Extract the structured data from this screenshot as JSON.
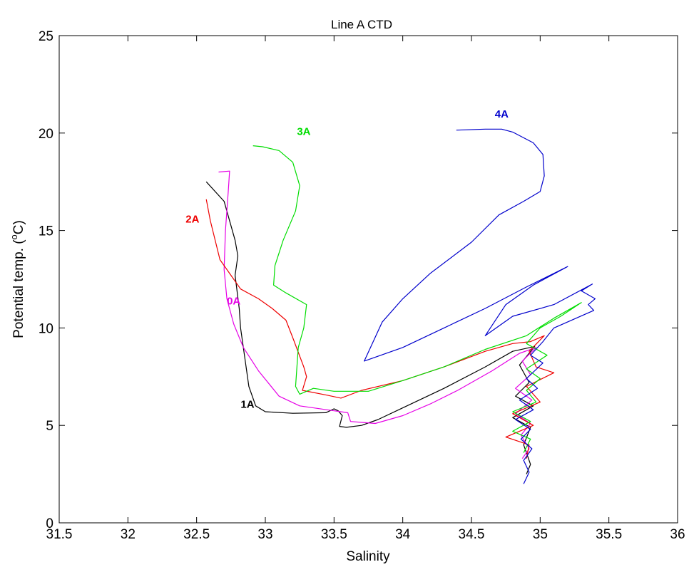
{
  "chart_data": {
    "type": "line",
    "title": "Line A CTD",
    "xlabel": "Salinity",
    "ylabel_prefix": "Potential temp. (",
    "ylabel_sup": "o",
    "ylabel_suffix": "C)",
    "xlim": [
      31.5,
      36
    ],
    "ylim": [
      0,
      25
    ],
    "xticks": [
      "31.5",
      "32",
      "32.5",
      "33",
      "33.5",
      "34",
      "34.5",
      "35",
      "35.5",
      "36"
    ],
    "yticks": [
      "0",
      "5",
      "10",
      "15",
      "20",
      "25"
    ],
    "grid": false,
    "legend": "none",
    "series": [
      {
        "name": "1A",
        "color": "#000000",
        "label_at": [
          32.87,
          5.9
        ],
        "points": [
          [
            32.57,
            17.5
          ],
          [
            32.7,
            16.5
          ],
          [
            32.78,
            14.5
          ],
          [
            32.8,
            13.7
          ],
          [
            32.78,
            12.7
          ],
          [
            32.81,
            11.0
          ],
          [
            32.82,
            10.0
          ],
          [
            32.85,
            8.5
          ],
          [
            32.88,
            7.0
          ],
          [
            32.93,
            6.0
          ],
          [
            33.0,
            5.7
          ],
          [
            33.2,
            5.62
          ],
          [
            33.44,
            5.65
          ],
          [
            33.5,
            5.85
          ],
          [
            33.53,
            5.75
          ],
          [
            33.56,
            5.5
          ],
          [
            33.54,
            4.95
          ],
          [
            33.59,
            4.9
          ],
          [
            33.7,
            5.0
          ],
          [
            33.82,
            5.3
          ],
          [
            34.0,
            5.9
          ],
          [
            34.3,
            6.9
          ],
          [
            34.6,
            8.0
          ],
          [
            34.8,
            8.8
          ],
          [
            34.96,
            9.05
          ],
          [
            34.85,
            8.1
          ],
          [
            34.92,
            7.2
          ],
          [
            34.82,
            6.5
          ],
          [
            34.95,
            6.0
          ],
          [
            34.8,
            5.4
          ],
          [
            34.93,
            4.9
          ],
          [
            34.88,
            4.0
          ],
          [
            34.93,
            3.0
          ],
          [
            34.9,
            2.5
          ]
        ]
      },
      {
        "name": "0A",
        "color": "#e600e6",
        "label_at": [
          32.77,
          11.2
        ],
        "points": [
          [
            32.66,
            18.0
          ],
          [
            32.74,
            18.05
          ],
          [
            32.73,
            17.0
          ],
          [
            32.71,
            15.0
          ],
          [
            32.7,
            13.0
          ],
          [
            32.72,
            11.5
          ],
          [
            32.77,
            10.2
          ],
          [
            32.84,
            9.0
          ],
          [
            32.95,
            7.8
          ],
          [
            33.1,
            6.5
          ],
          [
            33.25,
            6.0
          ],
          [
            33.45,
            5.8
          ],
          [
            33.6,
            5.65
          ],
          [
            33.62,
            5.2
          ],
          [
            33.8,
            5.1
          ],
          [
            34.0,
            5.5
          ],
          [
            34.2,
            6.1
          ],
          [
            34.4,
            6.8
          ],
          [
            34.65,
            7.8
          ],
          [
            34.85,
            8.7
          ],
          [
            34.97,
            9.0
          ],
          [
            34.87,
            8.3
          ],
          [
            34.93,
            7.6
          ],
          [
            34.82,
            6.9
          ],
          [
            34.94,
            6.3
          ],
          [
            34.82,
            5.6
          ],
          [
            34.93,
            5.1
          ],
          [
            34.86,
            4.5
          ],
          [
            34.92,
            3.8
          ],
          [
            34.87,
            3.3
          ]
        ]
      },
      {
        "name": "2A",
        "color": "#ee0000",
        "label_at": [
          32.47,
          15.4
        ],
        "points": [
          [
            32.57,
            16.6
          ],
          [
            32.6,
            15.5
          ],
          [
            32.67,
            13.5
          ],
          [
            32.75,
            12.7
          ],
          [
            32.82,
            12.0
          ],
          [
            32.95,
            11.5
          ],
          [
            33.05,
            11.0
          ],
          [
            33.15,
            10.4
          ],
          [
            33.2,
            9.5
          ],
          [
            33.28,
            8.0
          ],
          [
            33.3,
            7.5
          ],
          [
            33.27,
            6.8
          ],
          [
            33.45,
            6.55
          ],
          [
            33.55,
            6.4
          ],
          [
            33.7,
            6.8
          ],
          [
            34.0,
            7.3
          ],
          [
            34.3,
            8.0
          ],
          [
            34.6,
            8.8
          ],
          [
            34.8,
            9.2
          ],
          [
            34.93,
            9.3
          ],
          [
            35.03,
            9.6
          ],
          [
            34.92,
            8.8
          ],
          [
            34.97,
            8.0
          ],
          [
            35.1,
            7.7
          ],
          [
            34.9,
            7.0
          ],
          [
            35.0,
            6.2
          ],
          [
            34.8,
            5.6
          ],
          [
            34.95,
            5.0
          ],
          [
            34.75,
            4.4
          ],
          [
            34.92,
            4.0
          ],
          [
            34.9,
            3.3
          ]
        ]
      },
      {
        "name": "3A",
        "color": "#00dd00",
        "label_at": [
          33.28,
          19.9
        ],
        "points": [
          [
            32.91,
            19.35
          ],
          [
            32.98,
            19.3
          ],
          [
            33.1,
            19.1
          ],
          [
            33.2,
            18.5
          ],
          [
            33.25,
            17.3
          ],
          [
            33.22,
            16.0
          ],
          [
            33.13,
            14.5
          ],
          [
            33.07,
            13.2
          ],
          [
            33.06,
            12.2
          ],
          [
            33.15,
            11.8
          ],
          [
            33.3,
            11.2
          ],
          [
            33.28,
            10.0
          ],
          [
            33.24,
            9.0
          ],
          [
            33.23,
            8.0
          ],
          [
            33.22,
            7.0
          ],
          [
            33.25,
            6.6
          ],
          [
            33.35,
            6.9
          ],
          [
            33.5,
            6.75
          ],
          [
            33.75,
            6.75
          ],
          [
            34.0,
            7.3
          ],
          [
            34.3,
            8.0
          ],
          [
            34.6,
            8.9
          ],
          [
            34.9,
            9.6
          ],
          [
            35.1,
            10.5
          ],
          [
            35.3,
            11.3
          ],
          [
            35.15,
            10.6
          ],
          [
            35.0,
            10.0
          ],
          [
            34.9,
            9.2
          ],
          [
            35.05,
            8.6
          ],
          [
            34.9,
            7.9
          ],
          [
            35.0,
            7.4
          ],
          [
            34.9,
            6.8
          ],
          [
            34.97,
            6.2
          ],
          [
            34.8,
            5.7
          ],
          [
            34.93,
            5.2
          ],
          [
            34.8,
            4.7
          ],
          [
            34.93,
            4.3
          ],
          [
            34.88,
            3.6
          ]
        ]
      },
      {
        "name": "4A",
        "color": "#0000cc",
        "label_at": [
          34.72,
          20.8
        ],
        "points": [
          [
            34.39,
            20.15
          ],
          [
            34.6,
            20.2
          ],
          [
            34.72,
            20.2
          ],
          [
            34.8,
            20.05
          ],
          [
            34.95,
            19.5
          ],
          [
            35.02,
            18.9
          ],
          [
            35.03,
            17.8
          ],
          [
            35.0,
            17.0
          ],
          [
            34.88,
            16.5
          ],
          [
            34.7,
            15.8
          ],
          [
            34.5,
            14.4
          ],
          [
            34.2,
            12.8
          ],
          [
            34.0,
            11.5
          ],
          [
            33.85,
            10.3
          ],
          [
            33.72,
            8.3
          ],
          [
            34.0,
            9.0
          ],
          [
            34.3,
            10.0
          ],
          [
            34.6,
            11.0
          ],
          [
            34.9,
            12.1
          ],
          [
            35.2,
            13.15
          ],
          [
            34.95,
            12.2
          ],
          [
            34.75,
            11.2
          ],
          [
            34.6,
            9.6
          ],
          [
            34.8,
            10.6
          ],
          [
            35.1,
            11.2
          ],
          [
            35.38,
            12.25
          ],
          [
            35.3,
            11.9
          ],
          [
            35.4,
            11.5
          ],
          [
            35.35,
            11.2
          ],
          [
            35.39,
            10.9
          ],
          [
            35.1,
            10.0
          ],
          [
            35.02,
            9.3
          ],
          [
            34.93,
            8.6
          ],
          [
            35.02,
            8.2
          ],
          [
            34.9,
            7.4
          ],
          [
            34.98,
            6.9
          ],
          [
            34.85,
            6.3
          ],
          [
            34.95,
            5.8
          ],
          [
            34.82,
            5.3
          ],
          [
            34.93,
            4.8
          ],
          [
            34.86,
            4.3
          ],
          [
            34.94,
            3.8
          ],
          [
            34.88,
            3.2
          ],
          [
            34.92,
            2.6
          ],
          [
            34.88,
            2.0
          ]
        ]
      }
    ]
  }
}
